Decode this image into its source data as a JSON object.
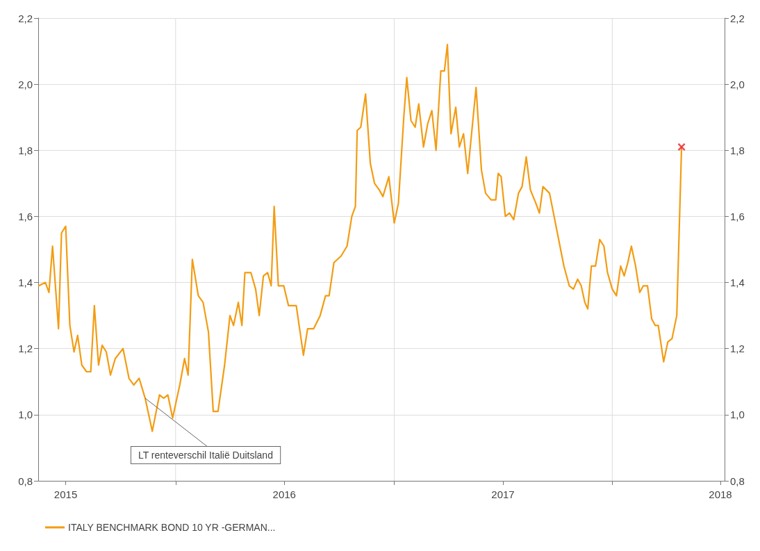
{
  "chart_data": {
    "type": "line",
    "series": [
      {
        "name": "ITALY BENCHMARK BOND 10 YR -GERMAN...",
        "color": "#f39c12",
        "marker": "none",
        "x": [
          "2015-05-17",
          "2015-05-28",
          "2015-06-03",
          "2015-06-09",
          "2015-06-19",
          "2015-06-24",
          "2015-07-01",
          "2015-07-08",
          "2015-07-15",
          "2015-07-21",
          "2015-07-28",
          "2015-08-05",
          "2015-08-12",
          "2015-08-18",
          "2015-08-25",
          "2015-08-31",
          "2015-09-07",
          "2015-09-14",
          "2015-09-22",
          "2015-10-05",
          "2015-10-15",
          "2015-10-23",
          "2015-11-01",
          "2015-11-11",
          "2015-11-23",
          "2015-12-05",
          "2015-12-12",
          "2015-12-19",
          "2015-12-27",
          "2016-01-08",
          "2016-01-16",
          "2016-01-22",
          "2016-01-29",
          "2016-02-08",
          "2016-02-16",
          "2016-02-25",
          "2016-03-04",
          "2016-03-12",
          "2016-03-23",
          "2016-04-01",
          "2016-04-07",
          "2016-04-15",
          "2016-04-21",
          "2016-04-26",
          "2016-05-06",
          "2016-05-14",
          "2016-05-20",
          "2016-05-27",
          "2016-06-03",
          "2016-06-09",
          "2016-06-14",
          "2016-06-21",
          "2016-06-30",
          "2016-07-08",
          "2016-07-21",
          "2016-08-02",
          "2016-08-09",
          "2016-08-19",
          "2016-08-30",
          "2016-09-08",
          "2016-09-14",
          "2016-09-22",
          "2016-10-04",
          "2016-10-14",
          "2016-10-22",
          "2016-10-28",
          "2016-10-31",
          "2016-11-06",
          "2016-11-14",
          "2016-11-22",
          "2016-11-29",
          "2016-12-07",
          "2016-12-13",
          "2016-12-23",
          "2017-01-01",
          "2017-01-08",
          "2017-01-17",
          "2017-01-22",
          "2017-01-29",
          "2017-02-05",
          "2017-02-11",
          "2017-02-19",
          "2017-02-26",
          "2017-03-05",
          "2017-03-12",
          "2017-03-20",
          "2017-03-26",
          "2017-03-31",
          "2017-04-06",
          "2017-04-14",
          "2017-04-20",
          "2017-04-27",
          "2017-05-04",
          "2017-05-18",
          "2017-05-27",
          "2017-06-03",
          "2017-06-12",
          "2017-06-20",
          "2017-06-24",
          "2017-06-29",
          "2017-07-06",
          "2017-07-13",
          "2017-07-20",
          "2017-07-28",
          "2017-08-03",
          "2017-08-10",
          "2017-08-17",
          "2017-08-26",
          "2017-09-01",
          "2017-09-07",
          "2017-09-18",
          "2017-09-30",
          "2017-10-12",
          "2017-10-21",
          "2017-10-28",
          "2017-11-04",
          "2017-11-10",
          "2017-11-16",
          "2017-11-21",
          "2017-11-27",
          "2017-12-04",
          "2017-12-11",
          "2017-12-18",
          "2017-12-24",
          "2018-01-01",
          "2018-01-08",
          "2018-01-15",
          "2018-01-21",
          "2018-01-27",
          "2018-02-02",
          "2018-02-09",
          "2018-02-16",
          "2018-02-22",
          "2018-03-01",
          "2018-03-08",
          "2018-03-14",
          "2018-03-19",
          "2018-03-28",
          "2018-04-04",
          "2018-04-11",
          "2018-04-19",
          "2018-04-27"
        ],
        "values": [
          1.39,
          1.4,
          1.37,
          1.51,
          1.26,
          1.55,
          1.57,
          1.27,
          1.19,
          1.24,
          1.15,
          1.13,
          1.13,
          1.33,
          1.15,
          1.21,
          1.19,
          1.12,
          1.17,
          1.2,
          1.11,
          1.09,
          1.11,
          1.05,
          0.95,
          1.06,
          1.05,
          1.06,
          0.99,
          1.09,
          1.17,
          1.12,
          1.47,
          1.36,
          1.34,
          1.25,
          1.01,
          1.01,
          1.15,
          1.3,
          1.27,
          1.34,
          1.27,
          1.43,
          1.43,
          1.38,
          1.3,
          1.42,
          1.43,
          1.39,
          1.63,
          1.39,
          1.39,
          1.33,
          1.33,
          1.18,
          1.26,
          1.26,
          1.3,
          1.36,
          1.36,
          1.46,
          1.48,
          1.51,
          1.6,
          1.63,
          1.86,
          1.87,
          1.97,
          1.76,
          1.7,
          1.68,
          1.66,
          1.72,
          1.58,
          1.64,
          1.9,
          2.02,
          1.89,
          1.87,
          1.94,
          1.81,
          1.88,
          1.92,
          1.8,
          2.04,
          2.04,
          2.12,
          1.85,
          1.93,
          1.81,
          1.85,
          1.73,
          1.99,
          1.74,
          1.67,
          1.65,
          1.65,
          1.73,
          1.72,
          1.6,
          1.61,
          1.59,
          1.67,
          1.69,
          1.78,
          1.68,
          1.64,
          1.61,
          1.69,
          1.67,
          1.56,
          1.45,
          1.39,
          1.38,
          1.41,
          1.39,
          1.34,
          1.32,
          1.45,
          1.45,
          1.53,
          1.51,
          1.43,
          1.38,
          1.36,
          1.45,
          1.42,
          1.46,
          1.51,
          1.45,
          1.37,
          1.39,
          1.39,
          1.29,
          1.27,
          1.27,
          1.16,
          1.22,
          1.23,
          1.3,
          1.81
        ]
      },
      {
        "type": "scatter",
        "color": "#e8202a",
        "marker": "cross",
        "x": [
          "2018-04-27"
        ],
        "values": [
          1.81
        ]
      }
    ],
    "xlim": [
      "2015-05-16",
      "2018-07-08"
    ],
    "xticks": [
      {
        "value": "2015-07-01",
        "label": "2015"
      },
      {
        "value": "2016-01-01",
        "label": null
      },
      {
        "value": "2016-07-01",
        "label": "2016"
      },
      {
        "value": "2017-01-01",
        "label": null
      },
      {
        "value": "2017-07-02",
        "label": "2017"
      },
      {
        "value": "2018-01-01",
        "label": null
      },
      {
        "value": "2018-07-01",
        "label": "2018"
      }
    ],
    "ylim": [
      0.8,
      2.2
    ],
    "yticks": [
      {
        "value": 0.8,
        "label": "0,8"
      },
      {
        "value": 1.0,
        "label": "1,0"
      },
      {
        "value": 1.2,
        "label": "1,2"
      },
      {
        "value": 1.4,
        "label": "1,4"
      },
      {
        "value": 1.6,
        "label": "1,6"
      },
      {
        "value": 1.8,
        "label": "1,8"
      },
      {
        "value": 2.0,
        "label": "2,0"
      },
      {
        "value": 2.2,
        "label": "2,2"
      }
    ],
    "y2lim": [
      0.8,
      2.2
    ],
    "y2ticks": [
      {
        "value": 0.8,
        "label": "0,8"
      },
      {
        "value": 1.0,
        "label": "1,0"
      },
      {
        "value": 1.2,
        "label": "1,2"
      },
      {
        "value": 1.4,
        "label": "1,4"
      },
      {
        "value": 1.6,
        "label": "1,6"
      },
      {
        "value": 1.8,
        "label": "1,8"
      },
      {
        "value": 2.0,
        "label": "2,0"
      },
      {
        "value": 2.2,
        "label": "2,2"
      }
    ],
    "annotations": [
      {
        "text": "LT renteverschil Italië Duitsland",
        "x": "2015-11-11",
        "y": 1.05
      }
    ],
    "grid": true,
    "legend": "bottom left",
    "line_style": "solid"
  }
}
